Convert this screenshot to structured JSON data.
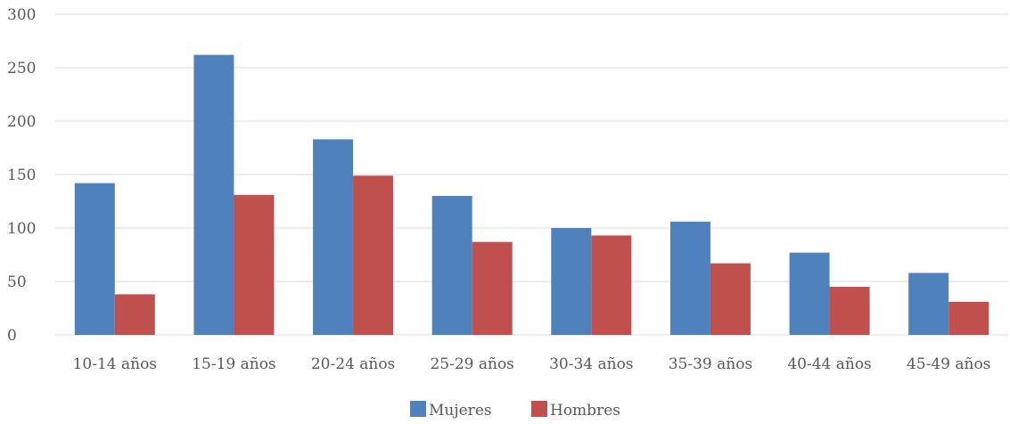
{
  "chart_data": {
    "type": "bar",
    "categories": [
      "10-14 años",
      "15-19 años",
      "20-24 años",
      "25-29 años",
      "30-34 años",
      "35-39 años",
      "40-44 años",
      "45-49 años"
    ],
    "series": [
      {
        "name": "Mujeres",
        "color": "#4f81bd",
        "values": [
          142,
          262,
          183,
          130,
          100,
          106,
          77,
          58
        ]
      },
      {
        "name": "Hombres",
        "color": "#c0504d",
        "values": [
          38,
          131,
          149,
          87,
          93,
          67,
          45,
          31
        ]
      }
    ],
    "yticks": [
      "0",
      "50",
      "100",
      "150",
      "200",
      "250",
      "300"
    ],
    "ylim": [
      0,
      300
    ],
    "grid": true,
    "legend_position": "bottom"
  }
}
